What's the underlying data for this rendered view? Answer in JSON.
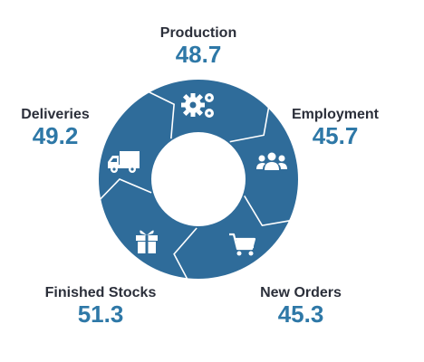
{
  "colors": {
    "ring": "#2f6c9a",
    "value": "#2e78a7",
    "label": "#2b2f3a",
    "divider": "#ffffff"
  },
  "segments": [
    {
      "id": "production",
      "label": "Production",
      "value": "48.7",
      "icon": "gears-icon"
    },
    {
      "id": "employment",
      "label": "Employment",
      "value": "45.7",
      "icon": "people-icon"
    },
    {
      "id": "new-orders",
      "label": "New Orders",
      "value": "45.3",
      "icon": "cart-icon"
    },
    {
      "id": "finished-stocks",
      "label": "Finished Stocks",
      "value": "51.3",
      "icon": "gift-icon"
    },
    {
      "id": "deliveries",
      "label": "Deliveries",
      "value": "49.2",
      "icon": "truck-icon"
    }
  ]
}
